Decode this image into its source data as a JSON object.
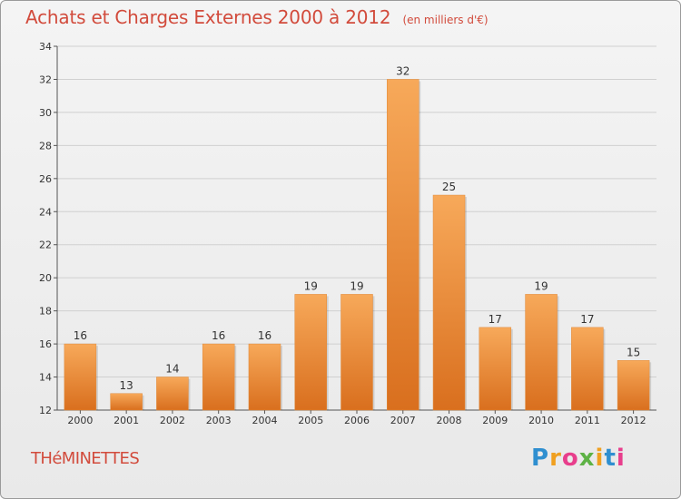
{
  "title": "Achats et Charges Externes 2000 à 2012",
  "subtitle": "(en milliers d'€)",
  "place": "THéMINETTES",
  "logo": {
    "letters": [
      "P",
      "r",
      "o",
      "x",
      "i",
      "t",
      "i"
    ],
    "colors": [
      "#2f8fd0",
      "#f0a020",
      "#e83e8c",
      "#5db245",
      "#f0a020",
      "#2f8fd0",
      "#e83e8c"
    ]
  },
  "colors": {
    "bar_light": "#f7a95a",
    "bar_dark": "#d96f1e",
    "title": "#d24b3c",
    "grid": "#d0d0d0"
  },
  "chart_data": {
    "type": "bar",
    "categories": [
      "2000",
      "2001",
      "2002",
      "2003",
      "2004",
      "2005",
      "2006",
      "2007",
      "2008",
      "2009",
      "2010",
      "2011",
      "2012"
    ],
    "values": [
      16,
      13,
      14,
      16,
      16,
      19,
      19,
      32,
      25,
      17,
      19,
      17,
      15
    ],
    "ylim": [
      12,
      34
    ],
    "yticks": [
      12,
      14,
      16,
      18,
      20,
      22,
      24,
      26,
      28,
      30,
      32,
      34
    ],
    "grid": true,
    "legend": "none"
  }
}
